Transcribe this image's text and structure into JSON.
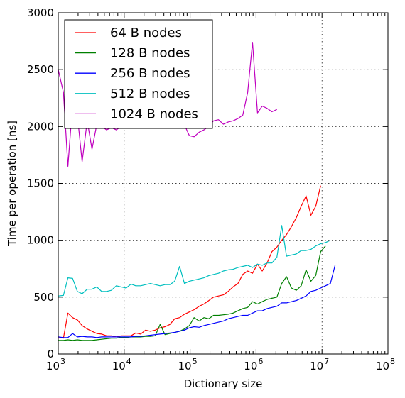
{
  "chart_data": {
    "type": "line",
    "title": "",
    "xlabel": "Dictionary size",
    "ylabel": "Time per operation [ns]",
    "xscale": "log",
    "xlim": [
      1000,
      100000000
    ],
    "ylim": [
      0,
      3000
    ],
    "grid": true,
    "legend_position": "top-left",
    "x_ticks": [
      {
        "value": 1000,
        "base": "10",
        "exp": "3"
      },
      {
        "value": 10000,
        "base": "10",
        "exp": "4"
      },
      {
        "value": 100000,
        "base": "10",
        "exp": "5"
      },
      {
        "value": 1000000,
        "base": "10",
        "exp": "6"
      },
      {
        "value": 10000000,
        "base": "10",
        "exp": "7"
      },
      {
        "value": 100000000,
        "base": "10",
        "exp": "8"
      }
    ],
    "y_ticks": [
      {
        "value": 0,
        "label": "0"
      },
      {
        "value": 500,
        "label": "500"
      },
      {
        "value": 1000,
        "label": "1000"
      },
      {
        "value": 1500,
        "label": "1500"
      },
      {
        "value": 2000,
        "label": "2000"
      },
      {
        "value": 2500,
        "label": "2500"
      },
      {
        "value": 3000,
        "label": "3000"
      }
    ],
    "series": [
      {
        "name": "64 B nodes",
        "color": "#ff0000",
        "points": [
          [
            1000,
            150
          ],
          [
            1200,
            140
          ],
          [
            1400,
            360
          ],
          [
            1650,
            320
          ],
          [
            1950,
            300
          ],
          [
            2300,
            250
          ],
          [
            2750,
            220
          ],
          [
            3250,
            200
          ],
          [
            3850,
            180
          ],
          [
            4550,
            175
          ],
          [
            5400,
            160
          ],
          [
            6400,
            160
          ],
          [
            7600,
            150
          ],
          [
            9000,
            160
          ],
          [
            10700,
            160
          ],
          [
            12700,
            160
          ],
          [
            15000,
            185
          ],
          [
            17800,
            175
          ],
          [
            21100,
            210
          ],
          [
            25000,
            200
          ],
          [
            29600,
            210
          ],
          [
            35100,
            230
          ],
          [
            41600,
            240
          ],
          [
            49300,
            260
          ],
          [
            58400,
            310
          ],
          [
            69200,
            320
          ],
          [
            82000,
            350
          ],
          [
            97200,
            370
          ],
          [
            115000,
            390
          ],
          [
            137000,
            420
          ],
          [
            162000,
            440
          ],
          [
            192000,
            470
          ],
          [
            227000,
            500
          ],
          [
            269000,
            510
          ],
          [
            319000,
            520
          ],
          [
            378000,
            550
          ],
          [
            448000,
            590
          ],
          [
            531000,
            620
          ],
          [
            629000,
            700
          ],
          [
            746000,
            730
          ],
          [
            884000,
            710
          ],
          [
            1050000,
            790
          ],
          [
            1240000,
            730
          ],
          [
            1470000,
            800
          ],
          [
            1740000,
            900
          ],
          [
            2070000,
            940
          ],
          [
            2450000,
            1000
          ],
          [
            2900000,
            1050
          ],
          [
            3440000,
            1120
          ],
          [
            4080000,
            1200
          ],
          [
            4830000,
            1300
          ],
          [
            5730000,
            1390
          ],
          [
            6790000,
            1220
          ],
          [
            8040000,
            1300
          ],
          [
            9530000,
            1480
          ]
        ]
      },
      {
        "name": "128 B nodes",
        "color": "#008000",
        "points": [
          [
            1000,
            120
          ],
          [
            1200,
            120
          ],
          [
            1400,
            125
          ],
          [
            1650,
            120
          ],
          [
            1950,
            125
          ],
          [
            2300,
            120
          ],
          [
            2750,
            120
          ],
          [
            3250,
            120
          ],
          [
            3850,
            125
          ],
          [
            4550,
            130
          ],
          [
            5400,
            135
          ],
          [
            6400,
            140
          ],
          [
            7600,
            140
          ],
          [
            9000,
            145
          ],
          [
            10700,
            145
          ],
          [
            12700,
            150
          ],
          [
            15000,
            150
          ],
          [
            17800,
            150
          ],
          [
            21100,
            155
          ],
          [
            25000,
            155
          ],
          [
            29600,
            160
          ],
          [
            35100,
            260
          ],
          [
            41600,
            170
          ],
          [
            49300,
            180
          ],
          [
            58400,
            190
          ],
          [
            69200,
            200
          ],
          [
            82000,
            220
          ],
          [
            97200,
            250
          ],
          [
            115000,
            320
          ],
          [
            137000,
            290
          ],
          [
            162000,
            320
          ],
          [
            192000,
            310
          ],
          [
            227000,
            340
          ],
          [
            269000,
            340
          ],
          [
            319000,
            345
          ],
          [
            378000,
            350
          ],
          [
            448000,
            360
          ],
          [
            531000,
            380
          ],
          [
            629000,
            400
          ],
          [
            746000,
            410
          ],
          [
            884000,
            460
          ],
          [
            1050000,
            440
          ],
          [
            1240000,
            460
          ],
          [
            1470000,
            480
          ],
          [
            1740000,
            490
          ],
          [
            2070000,
            500
          ],
          [
            2450000,
            620
          ],
          [
            2900000,
            680
          ],
          [
            3440000,
            580
          ],
          [
            4080000,
            560
          ],
          [
            4830000,
            600
          ],
          [
            5730000,
            740
          ],
          [
            6790000,
            640
          ],
          [
            8040000,
            690
          ],
          [
            9530000,
            900
          ],
          [
            11300000,
            950
          ]
        ]
      },
      {
        "name": "256 B nodes",
        "color": "#0000ff",
        "points": [
          [
            1000,
            150
          ],
          [
            1200,
            145
          ],
          [
            1400,
            145
          ],
          [
            1650,
            180
          ],
          [
            1950,
            150
          ],
          [
            2300,
            155
          ],
          [
            2750,
            150
          ],
          [
            3250,
            150
          ],
          [
            3850,
            145
          ],
          [
            4550,
            150
          ],
          [
            5400,
            150
          ],
          [
            6400,
            150
          ],
          [
            7600,
            150
          ],
          [
            9000,
            150
          ],
          [
            10700,
            150
          ],
          [
            12700,
            150
          ],
          [
            15000,
            155
          ],
          [
            17800,
            155
          ],
          [
            21100,
            160
          ],
          [
            25000,
            165
          ],
          [
            29600,
            170
          ],
          [
            35100,
            175
          ],
          [
            41600,
            180
          ],
          [
            49300,
            185
          ],
          [
            58400,
            190
          ],
          [
            69200,
            200
          ],
          [
            82000,
            210
          ],
          [
            97200,
            230
          ],
          [
            115000,
            240
          ],
          [
            137000,
            235
          ],
          [
            162000,
            250
          ],
          [
            192000,
            260
          ],
          [
            227000,
            270
          ],
          [
            269000,
            280
          ],
          [
            319000,
            290
          ],
          [
            378000,
            310
          ],
          [
            448000,
            320
          ],
          [
            531000,
            330
          ],
          [
            629000,
            340
          ],
          [
            746000,
            340
          ],
          [
            884000,
            360
          ],
          [
            1050000,
            380
          ],
          [
            1240000,
            380
          ],
          [
            1470000,
            400
          ],
          [
            1740000,
            410
          ],
          [
            2070000,
            420
          ],
          [
            2450000,
            450
          ],
          [
            2900000,
            450
          ],
          [
            3440000,
            460
          ],
          [
            4080000,
            470
          ],
          [
            4830000,
            490
          ],
          [
            5730000,
            510
          ],
          [
            6790000,
            550
          ],
          [
            8040000,
            560
          ],
          [
            9530000,
            580
          ],
          [
            11300000,
            600
          ],
          [
            13400000,
            620
          ],
          [
            15800000,
            780
          ]
        ]
      },
      {
        "name": "512 B nodes",
        "color": "#00bfbf",
        "points": [
          [
            1000,
            510
          ],
          [
            1200,
            515
          ],
          [
            1400,
            670
          ],
          [
            1650,
            665
          ],
          [
            1950,
            550
          ],
          [
            2300,
            530
          ],
          [
            2750,
            570
          ],
          [
            3250,
            570
          ],
          [
            3850,
            590
          ],
          [
            4550,
            550
          ],
          [
            5400,
            550
          ],
          [
            6400,
            560
          ],
          [
            7600,
            600
          ],
          [
            9000,
            590
          ],
          [
            10700,
            580
          ],
          [
            12700,
            615
          ],
          [
            15000,
            600
          ],
          [
            17800,
            600
          ],
          [
            21100,
            610
          ],
          [
            25000,
            620
          ],
          [
            29600,
            610
          ],
          [
            35100,
            600
          ],
          [
            41600,
            610
          ],
          [
            49300,
            610
          ],
          [
            58400,
            640
          ],
          [
            69200,
            770
          ],
          [
            82000,
            620
          ],
          [
            97200,
            640
          ],
          [
            115000,
            650
          ],
          [
            137000,
            660
          ],
          [
            162000,
            670
          ],
          [
            192000,
            690
          ],
          [
            227000,
            700
          ],
          [
            269000,
            710
          ],
          [
            319000,
            730
          ],
          [
            378000,
            740
          ],
          [
            448000,
            745
          ],
          [
            531000,
            760
          ],
          [
            629000,
            770
          ],
          [
            746000,
            780
          ],
          [
            884000,
            760
          ],
          [
            1050000,
            790
          ],
          [
            1240000,
            780
          ],
          [
            1470000,
            800
          ],
          [
            1740000,
            800
          ],
          [
            2070000,
            850
          ],
          [
            2450000,
            1130
          ],
          [
            2900000,
            860
          ],
          [
            3440000,
            870
          ],
          [
            4080000,
            880
          ],
          [
            4830000,
            910
          ],
          [
            5730000,
            910
          ],
          [
            6790000,
            920
          ],
          [
            8040000,
            950
          ],
          [
            9530000,
            970
          ],
          [
            11300000,
            980
          ],
          [
            13400000,
            1000
          ]
        ]
      },
      {
        "name": "1024 B nodes",
        "color": "#bf00bf",
        "points": [
          [
            1000,
            2500
          ],
          [
            1200,
            2300
          ],
          [
            1400,
            1650
          ],
          [
            1650,
            2200
          ],
          [
            1950,
            2100
          ],
          [
            2300,
            1690
          ],
          [
            2750,
            2050
          ],
          [
            3250,
            1800
          ],
          [
            3850,
            2020
          ],
          [
            4550,
            2000
          ],
          [
            5400,
            1970
          ],
          [
            6400,
            1990
          ],
          [
            7600,
            1970
          ],
          [
            9000,
            2000
          ],
          [
            84000,
            2000
          ],
          [
            97200,
            1920
          ],
          [
            115000,
            1910
          ],
          [
            137000,
            1950
          ],
          [
            162000,
            1970
          ],
          [
            192000,
            2000
          ],
          [
            227000,
            2050
          ],
          [
            269000,
            2060
          ],
          [
            319000,
            2020
          ],
          [
            378000,
            2040
          ],
          [
            448000,
            2050
          ],
          [
            531000,
            2070
          ],
          [
            629000,
            2100
          ],
          [
            746000,
            2300
          ],
          [
            884000,
            2740
          ],
          [
            1050000,
            2120
          ],
          [
            1240000,
            2180
          ],
          [
            1470000,
            2160
          ],
          [
            1740000,
            2130
          ],
          [
            2070000,
            2150
          ]
        ]
      }
    ]
  }
}
